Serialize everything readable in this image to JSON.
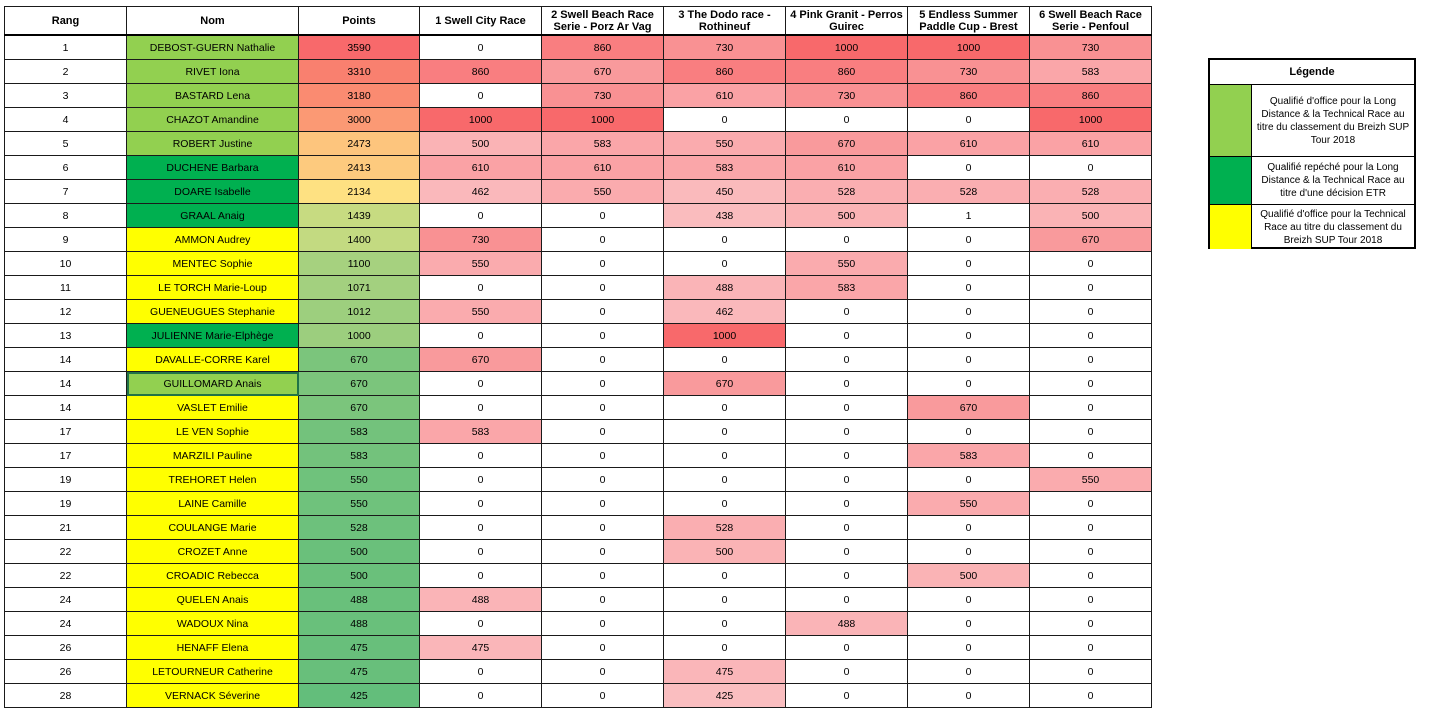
{
  "colors": {
    "green_light": "#92d050",
    "green_dark": "#00b050",
    "yellow": "#ffff00",
    "white": "#ffffff",
    "points_high": "#f8696b",
    "points_mid": "#ffeb84",
    "points_low": "#63be7b",
    "race_high": "#f8696b",
    "race_low": "#fcfcff"
  },
  "headers": [
    "Rang",
    "Nom",
    "Points",
    "1 Swell City Race",
    "2 Swell Beach Race Serie - Porz Ar Vag",
    "3 The Dodo race - Rothineuf",
    "4 Pink Granit - Perros Guirec",
    "5 Endless Summer Paddle Cup - Brest",
    "6 Swell Beach Race Serie - Penfoul"
  ],
  "rows": [
    {
      "rang": "1",
      "nom": "DEBOST-GUERN Nathalie",
      "cat": "green_light",
      "points": 3590,
      "races": [
        0,
        860,
        730,
        1000,
        1000,
        730
      ]
    },
    {
      "rang": "2",
      "nom": "RIVET Iona",
      "cat": "green_light",
      "points": 3310,
      "races": [
        860,
        670,
        860,
        860,
        730,
        583
      ]
    },
    {
      "rang": "3",
      "nom": "BASTARD Lena",
      "cat": "green_light",
      "points": 3180,
      "races": [
        0,
        730,
        610,
        730,
        860,
        860
      ]
    },
    {
      "rang": "4",
      "nom": "CHAZOT Amandine",
      "cat": "green_light",
      "points": 3000,
      "races": [
        1000,
        1000,
        0,
        0,
        0,
        1000
      ]
    },
    {
      "rang": "5",
      "nom": "ROBERT Justine",
      "cat": "green_light",
      "points": 2473,
      "races": [
        500,
        583,
        550,
        670,
        610,
        610
      ]
    },
    {
      "rang": "6",
      "nom": "DUCHENE Barbara",
      "cat": "green_dark",
      "points": 2413,
      "races": [
        610,
        610,
        583,
        610,
        0,
        0
      ]
    },
    {
      "rang": "7",
      "nom": "DOARE Isabelle",
      "cat": "green_dark",
      "points": 2134,
      "races": [
        462,
        550,
        450,
        528,
        528,
        528
      ]
    },
    {
      "rang": "8",
      "nom": "GRAAL Anaig",
      "cat": "green_dark",
      "points": 1439,
      "races": [
        0,
        0,
        438,
        500,
        1,
        500
      ]
    },
    {
      "rang": "9",
      "nom": "AMMON Audrey",
      "cat": "yellow",
      "points": 1400,
      "races": [
        730,
        0,
        0,
        0,
        0,
        670
      ]
    },
    {
      "rang": "10",
      "nom": "MENTEC Sophie",
      "cat": "yellow",
      "points": 1100,
      "races": [
        550,
        0,
        0,
        550,
        0,
        0
      ]
    },
    {
      "rang": "11",
      "nom": "LE TORCH Marie-Loup",
      "cat": "yellow",
      "points": 1071,
      "races": [
        0,
        0,
        488,
        583,
        0,
        0
      ]
    },
    {
      "rang": "12",
      "nom": "GUENEUGUES Stephanie",
      "cat": "yellow",
      "points": 1012,
      "races": [
        550,
        0,
        462,
        0,
        0,
        0
      ]
    },
    {
      "rang": "13",
      "nom": "JULIENNE Marie-Elphège",
      "cat": "green_dark",
      "points": 1000,
      "races": [
        0,
        0,
        1000,
        0,
        0,
        0
      ]
    },
    {
      "rang": "14",
      "nom": "DAVALLE-CORRE Karel",
      "cat": "yellow",
      "points": 670,
      "races": [
        670,
        0,
        0,
        0,
        0,
        0
      ]
    },
    {
      "rang": "14",
      "nom": "GUILLOMARD Anais",
      "cat": "green_light",
      "points": 670,
      "races": [
        0,
        0,
        670,
        0,
        0,
        0
      ],
      "selected": true
    },
    {
      "rang": "14",
      "nom": "VASLET Emilie",
      "cat": "yellow",
      "points": 670,
      "races": [
        0,
        0,
        0,
        0,
        670,
        0
      ]
    },
    {
      "rang": "17",
      "nom": "LE VEN Sophie",
      "cat": "yellow",
      "points": 583,
      "races": [
        583,
        0,
        0,
        0,
        0,
        0
      ]
    },
    {
      "rang": "17",
      "nom": "MARZILI Pauline",
      "cat": "yellow",
      "points": 583,
      "races": [
        0,
        0,
        0,
        0,
        583,
        0
      ]
    },
    {
      "rang": "19",
      "nom": "TREHORET Helen",
      "cat": "yellow",
      "points": 550,
      "races": [
        0,
        0,
        0,
        0,
        0,
        550
      ]
    },
    {
      "rang": "19",
      "nom": "LAINE Camille",
      "cat": "yellow",
      "points": 550,
      "races": [
        0,
        0,
        0,
        0,
        550,
        0
      ]
    },
    {
      "rang": "21",
      "nom": "COULANGE Marie",
      "cat": "yellow",
      "points": 528,
      "races": [
        0,
        0,
        528,
        0,
        0,
        0
      ]
    },
    {
      "rang": "22",
      "nom": "CROZET Anne",
      "cat": "yellow",
      "points": 500,
      "races": [
        0,
        0,
        500,
        0,
        0,
        0
      ]
    },
    {
      "rang": "22",
      "nom": "CROADIC Rebecca",
      "cat": "yellow",
      "points": 500,
      "races": [
        0,
        0,
        0,
        0,
        500,
        0
      ]
    },
    {
      "rang": "24",
      "nom": "QUELEN Anais",
      "cat": "yellow",
      "points": 488,
      "races": [
        488,
        0,
        0,
        0,
        0,
        0
      ]
    },
    {
      "rang": "24",
      "nom": "WADOUX Nina",
      "cat": "yellow",
      "points": 488,
      "races": [
        0,
        0,
        0,
        488,
        0,
        0
      ]
    },
    {
      "rang": "26",
      "nom": "HENAFF Elena",
      "cat": "yellow",
      "points": 475,
      "races": [
        475,
        0,
        0,
        0,
        0,
        0
      ]
    },
    {
      "rang": "26",
      "nom": "LETOURNEUR Catherine",
      "cat": "yellow",
      "points": 475,
      "races": [
        0,
        0,
        475,
        0,
        0,
        0
      ]
    },
    {
      "rang": "28",
      "nom": "VERNACK Séverine",
      "cat": "yellow",
      "points": 425,
      "races": [
        0,
        0,
        425,
        0,
        0,
        0
      ]
    }
  ],
  "legend": {
    "title": "Légende",
    "items": [
      {
        "color": "#92d050",
        "text": "Qualifié d'office pour la Long Distance & la Technical Race au titre du classement du Breizh SUP Tour 2018"
      },
      {
        "color": "#00b050",
        "text": "Qualifié repéché pour la Long Distance  & la Technical Race au titre d'une décision ETR"
      },
      {
        "color": "#ffff00",
        "text": "Qualifié d'office pour la Technical Race au titre du classement du Breizh SUP Tour 2018"
      }
    ]
  }
}
